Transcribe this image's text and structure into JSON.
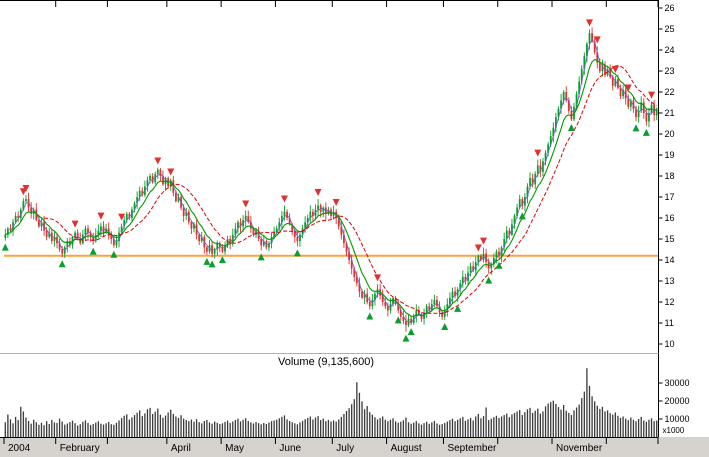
{
  "chart_data": {
    "type": "candlestick",
    "volume_title": "Volume (9,135,600)",
    "price_axis": {
      "min": 10,
      "max": 26,
      "step": 1,
      "ticks": [
        10,
        11,
        12,
        13,
        14,
        15,
        16,
        17,
        18,
        19,
        20,
        21,
        22,
        23,
        24,
        25,
        26
      ]
    },
    "volume_axis": {
      "ticks": [
        10000,
        20000,
        30000
      ],
      "unit": "x1000",
      "ref": 30000
    },
    "months": [
      {
        "label": "2004",
        "days": 20
      },
      {
        "label": "February",
        "days": 20
      },
      {
        "label": "",
        "days": 23
      },
      {
        "label": "April",
        "days": 21
      },
      {
        "label": "May",
        "days": 21
      },
      {
        "label": "June",
        "days": 22
      },
      {
        "label": "July",
        "days": 21
      },
      {
        "label": "August",
        "days": 22
      },
      {
        "label": "September",
        "days": 21
      },
      {
        "label": "",
        "days": 21
      },
      {
        "label": "November",
        "days": 21
      },
      {
        "label": "",
        "days": 20
      }
    ],
    "closes": [
      15.2,
      15.5,
      15.4,
      15.8,
      16.1,
      16.0,
      16.4,
      16.8,
      16.9,
      16.5,
      16.2,
      16.4,
      15.9,
      15.6,
      15.8,
      15.4,
      15.1,
      15.3,
      14.9,
      15.1,
      14.8,
      14.5,
      14.3,
      14.6,
      14.9,
      14.7,
      15.1,
      15.3,
      15.0,
      14.8,
      15.2,
      15.5,
      15.3,
      15.1,
      14.9,
      15.2,
      15.4,
      15.6,
      15.3,
      15.5,
      15.2,
      15.0,
      14.7,
      14.9,
      15.3,
      15.6,
      15.9,
      16.2,
      16.0,
      16.4,
      16.7,
      17.0,
      17.3,
      17.1,
      17.5,
      17.8,
      18.0,
      17.7,
      18.1,
      18.3,
      18.0,
      17.6,
      17.9,
      17.5,
      17.8,
      17.2,
      16.8,
      17.0,
      16.5,
      16.1,
      16.3,
      15.8,
      15.5,
      15.7,
      15.2,
      14.9,
      15.1,
      14.6,
      14.4,
      14.7,
      14.3,
      14.5,
      14.8,
      14.6,
      14.4,
      14.7,
      15.0,
      14.8,
      15.2,
      15.5,
      15.8,
      15.6,
      15.9,
      16.1,
      15.8,
      15.5,
      15.2,
      15.4,
      15.0,
      14.7,
      14.9,
      14.6,
      14.8,
      15.1,
      15.3,
      15.5,
      15.8,
      16.1,
      16.3,
      16.0,
      15.7,
      15.4,
      15.1,
      14.9,
      15.2,
      15.5,
      15.8,
      16.0,
      16.3,
      16.1,
      16.4,
      16.6,
      16.3,
      16.5,
      16.2,
      16.4,
      16.1,
      16.3,
      16.0,
      15.6,
      15.2,
      14.8,
      14.4,
      14.0,
      13.6,
      13.2,
      12.9,
      12.5,
      12.2,
      12.4,
      12.0,
      11.8,
      12.1,
      12.4,
      12.6,
      12.3,
      12.0,
      11.8,
      11.6,
      11.9,
      12.2,
      11.9,
      11.6,
      11.3,
      11.1,
      10.9,
      11.2,
      11.0,
      11.3,
      11.6,
      11.4,
      11.2,
      11.5,
      11.8,
      11.6,
      11.9,
      12.1,
      11.8,
      11.5,
      11.3,
      11.6,
      11.9,
      12.2,
      12.5,
      12.3,
      12.6,
      12.9,
      13.2,
      13.0,
      13.4,
      13.7,
      13.5,
      13.9,
      14.2,
      14.0,
      14.3,
      13.9,
      13.6,
      13.8,
      14.1,
      14.4,
      14.2,
      14.6,
      15.0,
      15.4,
      15.2,
      15.7,
      16.1,
      16.5,
      16.9,
      16.6,
      17.0,
      17.5,
      17.9,
      17.6,
      18.1,
      18.5,
      18.2,
      18.7,
      19.1,
      19.5,
      19.9,
      20.3,
      20.8,
      21.2,
      21.6,
      22.0,
      21.6,
      21.1,
      20.7,
      21.3,
      21.9,
      22.5,
      23.1,
      23.7,
      24.3,
      24.8,
      24.4,
      23.9,
      23.4,
      23.0,
      23.3,
      22.8,
      23.1,
      22.7,
      22.3,
      22.6,
      22.2,
      21.8,
      22.1,
      21.7,
      21.3,
      21.6,
      21.2,
      20.8,
      21.1,
      21.5,
      21.0,
      20.6,
      21.0,
      21.4,
      20.9,
      21.2
    ],
    "volumes_x1000": [
      8200,
      12500,
      9800,
      7600,
      11200,
      9400,
      16800,
      14200,
      10800,
      8900,
      7400,
      9600,
      8200,
      6800,
      7900,
      6500,
      8800,
      7200,
      9500,
      8100,
      7800,
      10200,
      8600,
      6900,
      7500,
      8300,
      9100,
      7700,
      6400,
      7100,
      8500,
      9300,
      7800,
      6600,
      7200,
      8000,
      8700,
      7400,
      6900,
      7600,
      8400,
      7100,
      6800,
      7900,
      9200,
      10500,
      11800,
      12600,
      9700,
      10900,
      12200,
      13500,
      14800,
      11600,
      13100,
      15400,
      16200,
      12800,
      14100,
      15800,
      12400,
      10700,
      11900,
      13600,
      15200,
      12800,
      11400,
      10600,
      12100,
      10200,
      9400,
      8800,
      9700,
      8500,
      9900,
      8300,
      7600,
      8900,
      9500,
      8100,
      7400,
      8600,
      7900,
      7200,
      7600,
      8400,
      9100,
      7800,
      8600,
      9400,
      10200,
      8700,
      9600,
      10400,
      8900,
      8100,
      7500,
      8300,
      7700,
      7000,
      7800,
      7200,
      8000,
      8800,
      9200,
      9600,
      10400,
      11200,
      12000,
      9800,
      8900,
      8200,
      7600,
      7000,
      8100,
      9000,
      9900,
      10600,
      11400,
      9700,
      10800,
      11600,
      9400,
      10200,
      8800,
      9500,
      8600,
      9200,
      8600,
      9800,
      11200,
      12800,
      14400,
      16000,
      18200,
      21000,
      30400,
      24600,
      19800,
      15400,
      17200,
      13800,
      12400,
      11000,
      9800,
      10600,
      11400,
      9600,
      8800,
      9600,
      10400,
      8700,
      7900,
      8500,
      9300,
      10800,
      8200,
      7400,
      8000,
      8800,
      7600,
      6900,
      7700,
      8500,
      7300,
      8100,
      8900,
      7500,
      6800,
      7200,
      7800,
      8600,
      9400,
      10200,
      8800,
      9600,
      10400,
      11200,
      9000,
      9800,
      10600,
      9200,
      11400,
      12800,
      10400,
      11600,
      16400,
      9400,
      10200,
      11000,
      11800,
      10600,
      11400,
      12200,
      13000,
      11000,
      12600,
      13400,
      14200,
      15000,
      12200,
      13800,
      15400,
      16200,
      13400,
      14600,
      15800,
      13000,
      14200,
      17000,
      18600,
      19400,
      20200,
      18400,
      16600,
      15200,
      17800,
      14600,
      13400,
      12200,
      14800,
      16400,
      18000,
      21600,
      25200,
      38200,
      28400,
      22600,
      19800,
      17400,
      15600,
      16800,
      14200,
      14800,
      13200,
      12400,
      13600,
      11800,
      10600,
      11400,
      10200,
      9400,
      10800,
      9600,
      8800,
      10000,
      11200,
      9200,
      8400,
      9600,
      10400,
      8800,
      9135.6
    ],
    "overlays": [
      {
        "name": "short-ma-line",
        "kind": "sma",
        "period": 3,
        "color": "#6666bb",
        "width": 0.8,
        "dash": ""
      },
      {
        "name": "fast-ma-line",
        "kind": "ema",
        "period": 8,
        "color": "#009900",
        "width": 1.1,
        "dash": ""
      },
      {
        "name": "slow-ma-line",
        "kind": "sma",
        "period": 16,
        "color": "#dd0000",
        "width": 1,
        "dash": "4 2"
      }
    ],
    "reference_line": {
      "value": 14.2,
      "color": "#ffa040",
      "width": 2
    },
    "signals": {
      "sell": [
        7,
        8,
        27,
        37,
        45,
        59,
        64,
        93,
        108,
        121,
        128,
        144,
        183,
        185,
        206,
        226,
        229,
        236,
        241,
        250
      ],
      "buy": [
        0,
        22,
        34,
        42,
        78,
        80,
        84,
        99,
        113,
        141,
        152,
        155,
        157,
        170,
        175,
        187,
        191,
        200,
        219,
        244,
        248
      ]
    },
    "colors": {
      "up": "#0a9e2e",
      "down": "#e03030",
      "volume": "#3a3a3a",
      "axis_line": "#000000",
      "panel_divider": "#b0b0b0",
      "strip_bg": "#d6d3ce",
      "text": "#000000"
    }
  }
}
